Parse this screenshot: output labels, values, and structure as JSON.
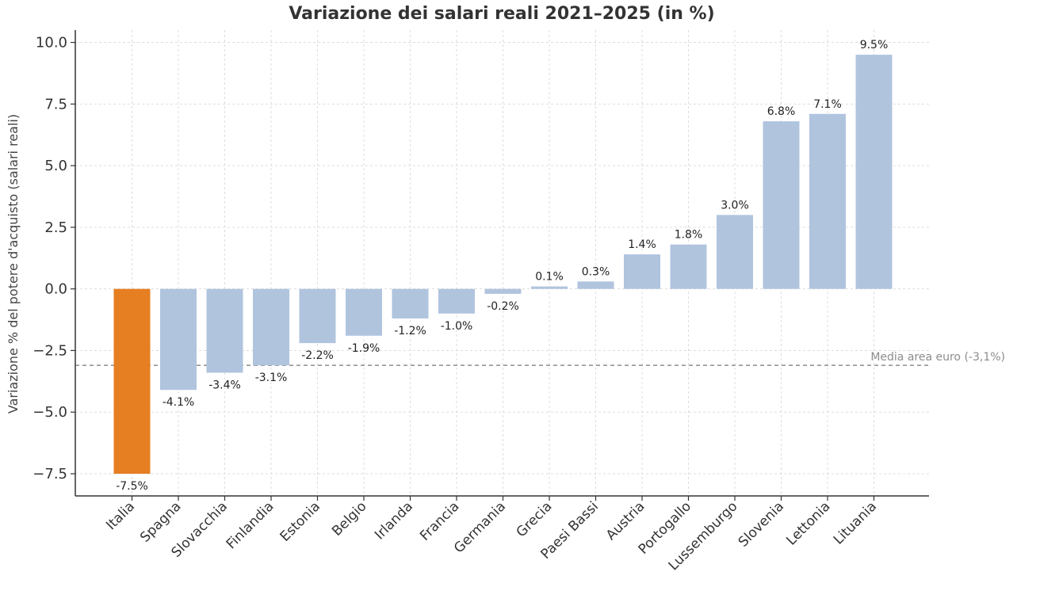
{
  "chart_data": {
    "type": "bar",
    "title": "Variazione dei salari reali 2021–2025 (in %)",
    "xlabel": "",
    "ylabel": "Variazione % del potere d'acquisto (salari reali)",
    "categories": [
      "Italia",
      "Spagna",
      "Slovacchia",
      "Finlandia",
      "Estonia",
      "Belgio",
      "Irlanda",
      "Francia",
      "Germania",
      "Grecia",
      "Paesi Bassi",
      "Austria",
      "Portogallo",
      "Lussemburgo",
      "Slovenia",
      "Lettonia",
      "Lituania"
    ],
    "values": [
      -7.5,
      -4.1,
      -3.4,
      -3.1,
      -2.2,
      -1.9,
      -1.2,
      -1.0,
      -0.2,
      0.1,
      0.3,
      1.4,
      1.8,
      3.0,
      6.8,
      7.1,
      9.5
    ],
    "data_labels": [
      "-7.5%",
      "-4.1%",
      "-3.4%",
      "-3.1%",
      "-2.2%",
      "-1.9%",
      "-1.2%",
      "-1.0%",
      "-0.2%",
      "0.1%",
      "0.3%",
      "1.4%",
      "1.8%",
      "3.0%",
      "6.8%",
      "7.1%",
      "9.5%"
    ],
    "ylim": [
      -8.4,
      10.5
    ],
    "yticks": [
      10.0,
      7.5,
      5.0,
      2.5,
      0.0,
      -2.5,
      -5.0,
      -7.5
    ],
    "ytick_labels": [
      "10.0",
      "7.5",
      "5.0",
      "2.5",
      "0.0",
      "−2.5",
      "−5.0",
      "−7.5"
    ],
    "grid": true,
    "reference_line": {
      "value": -3.1,
      "label": "Media area euro (-3,1%)",
      "style": "dashed",
      "color": "#777777"
    },
    "colors": {
      "default": "#b0c4de",
      "highlight": "#e67e22",
      "highlight_category": "Italia"
    }
  }
}
